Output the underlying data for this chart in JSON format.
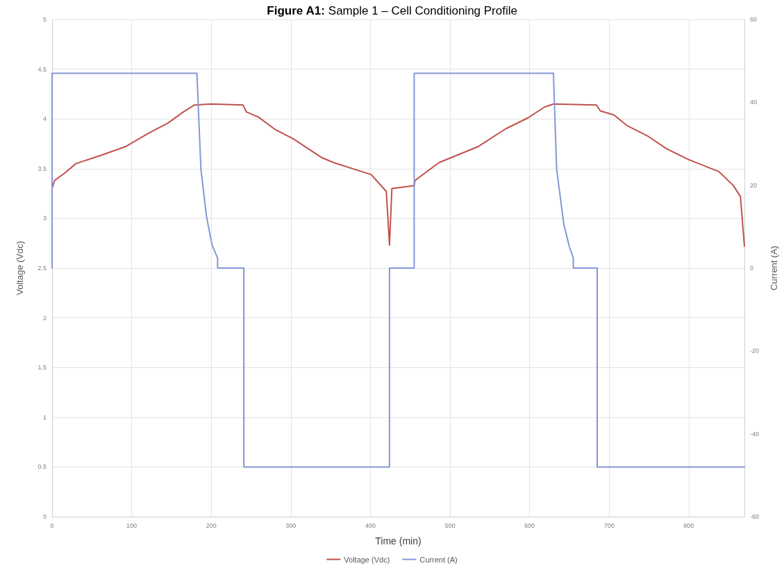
{
  "chart_data": {
    "type": "line",
    "title": "Figure A1: Sample 1 – Cell Conditioning Profile",
    "xlabel": "Time (min)",
    "ylabel": "Voltage (Vdc)",
    "y2label": "Current (A)",
    "xlim": [
      0,
      870
    ],
    "xticks": [
      0,
      100,
      200,
      300,
      400,
      500,
      600,
      700,
      800
    ],
    "ylim": [
      0,
      5
    ],
    "yticks": [
      0,
      0.5,
      1,
      1.5,
      2,
      2.5,
      3,
      3.5,
      4,
      4.5,
      5
    ],
    "y2lim": [
      -60,
      60
    ],
    "y2ticks": [
      -60,
      -40,
      -20,
      0,
      20,
      40,
      60
    ],
    "grid": true,
    "legend": "bottom",
    "marker": "none",
    "line_style": "solid",
    "series": [
      {
        "name": "Voltage (Vdc)",
        "color": "#c0504d",
        "x": [
          0,
          3,
          15,
          30,
          60,
          92,
          120,
          146,
          165,
          179,
          200,
          240,
          244,
          259,
          281,
          303,
          339,
          354,
          401,
          420,
          424,
          427,
          455,
          456,
          486,
          535,
          570,
          598,
          619,
          630,
          684,
          689,
          706,
          723,
          748,
          772,
          800,
          838,
          856,
          865,
          870
        ],
        "values": [
          3.3,
          3.38,
          3.45,
          3.55,
          3.63,
          3.72,
          3.85,
          3.96,
          4.07,
          4.14,
          4.15,
          4.14,
          4.07,
          4.02,
          3.89,
          3.8,
          3.61,
          3.56,
          3.44,
          3.27,
          2.73,
          3.3,
          3.33,
          3.38,
          3.56,
          3.72,
          3.9,
          4.01,
          4.12,
          4.15,
          4.14,
          4.08,
          4.04,
          3.93,
          3.83,
          3.7,
          3.59,
          3.47,
          3.33,
          3.22,
          2.72
        ]
      },
      {
        "name": "Current (A)",
        "color": "#8497d6",
        "axis": "y2",
        "x": [
          0,
          0,
          182,
          187,
          194,
          201,
          208,
          208,
          241,
          241,
          424,
          424,
          455,
          455,
          630,
          634,
          643,
          650,
          655,
          655,
          685,
          685,
          870
        ],
        "values": [
          0,
          47,
          47,
          24,
          12.5,
          5.6,
          2.4,
          0,
          0,
          -48,
          -48,
          0,
          0,
          47,
          47,
          24,
          10.6,
          5.2,
          2.4,
          0,
          0,
          -48,
          -48
        ]
      }
    ]
  }
}
